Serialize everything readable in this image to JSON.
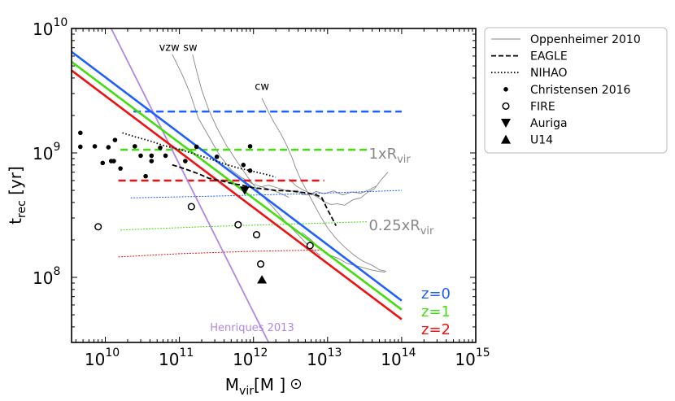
{
  "chart_data": {
    "type": "line",
    "xlabel": "M",
    "xlabel_sub": "vir",
    "xlabel_unit": "[M",
    "xlabel_unit_end": "]",
    "ylabel": "t",
    "ylabel_sub": "rec",
    "ylabel_unit": " [yr]",
    "xscale": "log",
    "yscale": "log",
    "xlim": [
      3500000000.0,
      1000000000000000.0
    ],
    "ylim": [
      30000000.0,
      10000000000.0
    ],
    "x_ticks": [
      {
        "value": 10000000000.0,
        "base": "10",
        "exp": "10"
      },
      {
        "value": 100000000000.0,
        "base": "10",
        "exp": "11"
      },
      {
        "value": 1000000000000.0,
        "base": "10",
        "exp": "12"
      },
      {
        "value": 10000000000000.0,
        "base": "10",
        "exp": "13"
      },
      {
        "value": 100000000000000.0,
        "base": "10",
        "exp": "14"
      },
      {
        "value": 1000000000000000.0,
        "base": "10",
        "exp": "15"
      }
    ],
    "y_ticks": [
      {
        "value": 100000000.0,
        "base": "10",
        "exp": "8"
      },
      {
        "value": 1000000000.0,
        "base": "10",
        "exp": "9"
      },
      {
        "value": 10000000000.0,
        "base": "10",
        "exp": "10"
      }
    ],
    "colors": {
      "z0": "#1f5fff",
      "z1": "#44dd11",
      "z2": "#ee1111",
      "henriques": "#b088e0",
      "oppenheimer": "#888888",
      "radius_text": "#888888"
    },
    "redshift_lines": [
      {
        "name": "z=0",
        "label": "z=0",
        "color_key": "z0",
        "x": [
          3500000000.0,
          100000000000000.0
        ],
        "y": [
          6500000000.0,
          65000000.0
        ]
      },
      {
        "name": "z=1",
        "label": "z=1",
        "color_key": "z1",
        "x": [
          3500000000.0,
          100000000000000.0
        ],
        "y": [
          5400000000.0,
          55000000.0
        ]
      },
      {
        "name": "z=2",
        "label": "z=2",
        "color_key": "z2",
        "x": [
          3500000000.0,
          100000000000000.0
        ],
        "y": [
          4600000000.0,
          46000000.0
        ]
      }
    ],
    "henriques": {
      "name": "Henriques 2013",
      "label": "Henriques 2013",
      "x": [
        12000000000.0,
        1600000000000.0
      ],
      "y": [
        10000000000.0,
        30000000.0
      ]
    },
    "dashed_1xrvir": [
      {
        "color_key": "z0",
        "x": [
          24000000000.0,
          100000000000000.0
        ],
        "y": 2150000000.0
      },
      {
        "color_key": "z1",
        "x": [
          16000000000.0,
          35000000000000.0
        ],
        "y": 1060000000.0
      },
      {
        "color_key": "z2",
        "x": [
          15000000000.0,
          9000000000000.0
        ],
        "y": 600000000.0
      }
    ],
    "dotted_025xrvir": [
      {
        "color_key": "z0",
        "x": [
          22000000000.0,
          300000000000.0,
          5000000000000.0,
          100000000000000.0
        ],
        "y": [
          435000000.0,
          450000000.0,
          470000000.0,
          500000000.0
        ]
      },
      {
        "color_key": "z1",
        "x": [
          16000000000.0,
          200000000000.0,
          3000000000000.0,
          35000000000000.0
        ],
        "y": [
          240000000.0,
          255000000.0,
          268000000.0,
          280000000.0
        ]
      },
      {
        "color_key": "z2",
        "x": [
          15000000000.0,
          100000000000.0,
          1000000000000.0,
          9000000000000.0
        ],
        "y": [
          146000000.0,
          155000000.0,
          162000000.0,
          166000000.0
        ]
      }
    ],
    "radius_labels": [
      {
        "prefix": "1xR",
        "sub": "vir",
        "x": 36000000000000.0,
        "y": 1000000000.0
      },
      {
        "prefix": "0.25xR",
        "sub": "vir",
        "x": 36000000000000.0,
        "y": 265000000.0
      }
    ],
    "oppenheimer_labels": [
      {
        "text": "vzw",
        "x": 73000000000.0,
        "y": 6600000000.0
      },
      {
        "text": "sw",
        "x": 140000000000.0,
        "y": 6600000000.0
      },
      {
        "text": "cw",
        "x": 1300000000000.0,
        "y": 3200000000.0
      }
    ],
    "oppenheimer_tracks": [
      {
        "name": "vzw",
        "x": [
          80000000000.0,
          110000000000.0,
          140000000000.0,
          180000000000.0,
          260000000000.0,
          350000000000.0,
          500000000000.0,
          700000000000.0,
          1000000000000.0,
          1500000000000.0,
          2200000000000.0,
          3000000000000.0
        ],
        "y": [
          6200000000.0,
          4200000000.0,
          3000000000.0,
          1900000000.0,
          1300000000.0,
          950000000.0,
          730000000.0,
          630000000.0,
          560000000.0,
          520000000.0,
          480000000.0,
          440000000.0
        ]
      },
      {
        "name": "sw",
        "x": [
          150000000000.0,
          170000000000.0,
          200000000000.0,
          250000000000.0,
          320000000000.0,
          430000000000.0,
          600000000000.0,
          850000000000.0,
          1200000000000.0,
          1800000000000.0,
          2700000000000.0,
          4000000000000.0,
          6000000000000.0,
          8000000000000.0
        ],
        "y": [
          6200000000.0,
          4600000000.0,
          3200000000.0,
          2200000000.0,
          1600000000.0,
          1150000000.0,
          850000000.0,
          630000000.0,
          480000000.0,
          370000000.0,
          280000000.0,
          220000000.0,
          170000000.0,
          150000000.0
        ]
      },
      {
        "name": "cw",
        "x": [
          1300000000000.0,
          1450000000000.0,
          1650000000000.0,
          1900000000000.0,
          2300000000000.0,
          2800000000000.0,
          3300000000000.0,
          3700000000000.0,
          4300000000000.0,
          5200000000000.0,
          6500000000000.0,
          8000000000000.0,
          10000000000000.0,
          13000000000000.0,
          17000000000000.0,
          23000000000000.0,
          30000000000000.0,
          40000000000000.0,
          50000000000000.0,
          62000000000000.0
        ],
        "y": [
          2750000000.0,
          2400000000.0,
          2050000000.0,
          1750000000.0,
          1450000000.0,
          1150000000.0,
          920000000.0,
          760000000.0,
          620000000.0,
          500000000.0,
          390000000.0,
          310000000.0,
          250000000.0,
          205000000.0,
          175000000.0,
          150000000.0,
          135000000.0,
          125000000.0,
          115000000.0,
          112000000.0
        ]
      },
      {
        "name": "top-1xrvir",
        "x": [
          3000000000000.0,
          3800000000000.0,
          4800000000000.0,
          6000000000000.0,
          7200000000000.0,
          9000000000000.0,
          11000000000000.0,
          13500000000000.0,
          17000000000000.0,
          22000000000000.0,
          28000000000000.0,
          35000000000000.0,
          43000000000000.0,
          52000000000000.0,
          65000000000000.0
        ],
        "y": [
          620000000.0,
          540000000.0,
          500000000.0,
          470000000.0,
          445000000.0,
          405000000.0,
          385000000.0,
          390000000.0,
          380000000.0,
          420000000.0,
          435000000.0,
          485000000.0,
          515000000.0,
          600000000.0,
          700000000.0
        ]
      },
      {
        "name": "mid",
        "x": [
          1200000000000.0,
          1600000000000.0,
          2200000000000.0,
          3000000000000.0,
          3900000000000.0,
          4600000000000.0,
          5600000000000.0,
          7000000000000.0,
          9000000000000.0,
          12000000000000.0,
          16000000000000.0,
          21000000000000.0,
          28000000000000.0,
          35000000000000.0,
          45000000000000.0
        ],
        "y": [
          530000000.0,
          550000000.0,
          520000000.0,
          490000000.0,
          500000000.0,
          460000000.0,
          460000000.0,
          490000000.0,
          470000000.0,
          495000000.0,
          460000000.0,
          485000000.0,
          475000000.0,
          500000000.0,
          540000000.0
        ]
      },
      {
        "name": "low",
        "x": [
          4500000000000.0,
          6000000000000.0,
          7500000000000.0,
          9000000000000.0,
          11000000000000.0,
          14000000000000.0,
          18000000000000.0,
          23000000000000.0,
          30000000000000.0,
          38000000000000.0,
          48000000000000.0,
          60000000000000.0
        ],
        "y": [
          230000000.0,
          200000000.0,
          175000000.0,
          160000000.0,
          150000000.0,
          142000000.0,
          130000000.0,
          125000000.0,
          120000000.0,
          115000000.0,
          112000000.0,
          110000000.0
        ]
      }
    ],
    "eagle": {
      "name": "EAGLE",
      "x": [
        80000000000.0,
        100000000000.0,
        130000000000.0,
        180000000000.0,
        250000000000.0,
        350000000000.0,
        500000000000.0,
        700000000000.0,
        1000000000000.0,
        1500000000000.0,
        2000000000000.0,
        3000000000000.0,
        4200000000000.0,
        5500000000000.0,
        7000000000000.0,
        8300000000000.0,
        9000000000000.0,
        10000000000000.0,
        11500000000000.0,
        13000000000000.0
      ],
      "y": [
        800000000.0,
        770000000.0,
        730000000.0,
        680000000.0,
        625000000.0,
        600000000.0,
        570000000.0,
        550000000.0,
        525000000.0,
        510000000.0,
        500000000.0,
        495000000.0,
        485000000.0,
        475000000.0,
        460000000.0,
        440000000.0,
        400000000.0,
        350000000.0,
        300000000.0,
        260000000.0
      ]
    },
    "nihao": {
      "name": "NIHAO",
      "x": [
        17000000000.0,
        25000000000.0,
        40000000000.0,
        60000000000.0,
        100000000000.0,
        160000000000.0,
        250000000000.0,
        400000000000.0,
        600000000000.0,
        1000000000000.0,
        1500000000000.0,
        2000000000000.0
      ],
      "y": [
        1450000000.0,
        1350000000.0,
        1250000000.0,
        1150000000.0,
        1070000000.0,
        980000000.0,
        900000000.0,
        820000000.0,
        760000000.0,
        710000000.0,
        670000000.0,
        640000000.0
      ]
    },
    "christensen": {
      "name": "Christensen 2016",
      "points": [
        {
          "x": 4600000000.0,
          "y": 1450000000.0
        },
        {
          "x": 4600000000.0,
          "y": 1120000000.0
        },
        {
          "x": 7200000000.0,
          "y": 1130000000.0
        },
        {
          "x": 9200000000.0,
          "y": 830000000.0
        },
        {
          "x": 11000000000.0,
          "y": 1110000000.0
        },
        {
          "x": 12000000000.0,
          "y": 860000000.0
        },
        {
          "x": 13000000000.0,
          "y": 860000000.0
        },
        {
          "x": 13500000000.0,
          "y": 1270000000.0
        },
        {
          "x": 16000000000.0,
          "y": 750000000.0
        },
        {
          "x": 25000000000.0,
          "y": 1130000000.0
        },
        {
          "x": 30000000000.0,
          "y": 950000000.0
        },
        {
          "x": 35000000000.0,
          "y": 650000000.0
        },
        {
          "x": 42000000000.0,
          "y": 860000000.0
        },
        {
          "x": 42000000000.0,
          "y": 950000000.0
        },
        {
          "x": 55000000000.0,
          "y": 1100000000.0
        },
        {
          "x": 65000000000.0,
          "y": 950000000.0
        },
        {
          "x": 120000000000.0,
          "y": 860000000.0
        },
        {
          "x": 170000000000.0,
          "y": 1120000000.0
        },
        {
          "x": 320000000000.0,
          "y": 930000000.0
        },
        {
          "x": 730000000000.0,
          "y": 800000000.0
        },
        {
          "x": 900000000000.0,
          "y": 1130000000.0
        },
        {
          "x": 900000000000.0,
          "y": 720000000.0
        }
      ]
    },
    "fire": {
      "name": "FIRE",
      "points": [
        {
          "x": 8000000000.0,
          "y": 255000000.0
        },
        {
          "x": 145000000000.0,
          "y": 370000000.0
        },
        {
          "x": 620000000000.0,
          "y": 265000000.0
        },
        {
          "x": 1100000000000.0,
          "y": 220000000.0
        },
        {
          "x": 1250000000000.0,
          "y": 128000000.0
        },
        {
          "x": 5800000000000.0,
          "y": 180000000.0
        }
      ]
    },
    "auriga": {
      "name": "Auriga",
      "points": [
        {
          "x": 760000000000.0,
          "y": 500000000.0
        }
      ]
    },
    "u14": {
      "name": "U14",
      "points": [
        {
          "x": 1300000000000.0,
          "y": 96000000.0
        }
      ]
    },
    "legend": [
      {
        "label": "Oppenheimer 2010",
        "style": "thin-gray"
      },
      {
        "label": "EAGLE",
        "style": "dashed"
      },
      {
        "label": "NIHAO",
        "style": "dotted"
      },
      {
        "label": "Christensen 2016",
        "style": "dot"
      },
      {
        "label": "FIRE",
        "style": "open-circle"
      },
      {
        "label": "Auriga",
        "style": "triangle-down"
      },
      {
        "label": "U14",
        "style": "triangle-up"
      }
    ]
  }
}
